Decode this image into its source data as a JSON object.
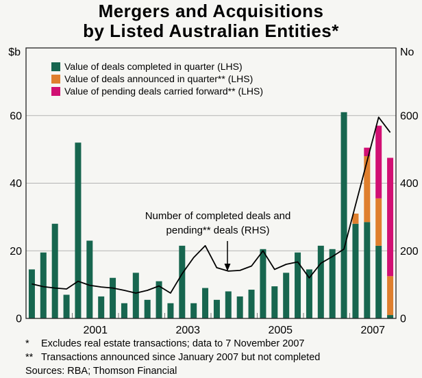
{
  "title": {
    "line1": "Mergers and Acquisitions",
    "line2": "by Listed Australian Entities*"
  },
  "colors": {
    "green": "#17664F",
    "orange": "#DF7F2E",
    "magenta": "#D11073",
    "line": "#000000",
    "grid": "#b3b3b3",
    "frame": "#222222",
    "background": "#f6f6f3"
  },
  "annotation": {
    "line1": "Number of completed deals and",
    "line2": "pending** deals (RHS)"
  },
  "footnotes": {
    "fn1_marker": "*",
    "fn1_text": "Excludes real estate transactions; data to 7 November 2007",
    "fn2_marker": "**",
    "fn2_text": "Transactions announced since January 2007 but not completed",
    "sources": "Sources: RBA; Thomson Financial"
  },
  "chart_data": {
    "type": "bar",
    "subtype": "stacked-bars-with-line",
    "quarters": [
      "2000Q1",
      "2000Q2",
      "2000Q3",
      "2000Q4",
      "2001Q1",
      "2001Q2",
      "2001Q3",
      "2001Q4",
      "2002Q1",
      "2002Q2",
      "2002Q3",
      "2002Q4",
      "2003Q1",
      "2003Q2",
      "2003Q3",
      "2003Q4",
      "2004Q1",
      "2004Q2",
      "2004Q3",
      "2004Q4",
      "2005Q1",
      "2005Q2",
      "2005Q3",
      "2005Q4",
      "2006Q1",
      "2006Q2",
      "2006Q3",
      "2006Q4",
      "2007Q1",
      "2007Q2",
      "2007Q3",
      "2007Q4"
    ],
    "x_tick_labels": [
      "2001",
      "2003",
      "2005",
      "2007"
    ],
    "lhs_axis": {
      "unit": "$b",
      "ticks": [
        0,
        20,
        40,
        60
      ],
      "min": 0,
      "max": 80
    },
    "rhs_axis": {
      "unit": "No",
      "ticks": [
        0,
        200,
        400,
        600
      ],
      "min": 0,
      "max": 800
    },
    "grid": "horizontal-only",
    "legend_position": "top-left-inside",
    "series": [
      {
        "name": "Value of deals completed in quarter (LHS)",
        "kind": "bar",
        "color_key": "green",
        "values": [
          14.5,
          19.5,
          28,
          7,
          52,
          23,
          6.5,
          12,
          4.5,
          13.5,
          5.5,
          11,
          4.5,
          21.5,
          4.5,
          9,
          5.5,
          8,
          6.5,
          8.5,
          20.5,
          9.5,
          13.5,
          19.5,
          14.5,
          21.5,
          20.5,
          61,
          28,
          28.5,
          21.5,
          1
        ]
      },
      {
        "name": "Value of deals announced in quarter** (LHS)",
        "kind": "bar",
        "color_key": "orange",
        "values": [
          0,
          0,
          0,
          0,
          0,
          0,
          0,
          0,
          0,
          0,
          0,
          0,
          0,
          0,
          0,
          0,
          0,
          0,
          0,
          0,
          0,
          0,
          0,
          0,
          0,
          0,
          0,
          0,
          3,
          19.5,
          14,
          11.5
        ]
      },
      {
        "name": "Value of pending deals carried forward** (LHS)",
        "kind": "bar",
        "color_key": "magenta",
        "values": [
          0,
          0,
          0,
          0,
          0,
          0,
          0,
          0,
          0,
          0,
          0,
          0,
          0,
          0,
          0,
          0,
          0,
          0,
          0,
          0,
          0,
          0,
          0,
          0,
          0,
          0,
          0,
          0,
          0,
          2.5,
          21.5,
          35
        ]
      },
      {
        "name": "Number of completed deals and pending** deals (RHS)",
        "kind": "line",
        "color_key": "line",
        "axis": "rhs",
        "values": [
          102,
          94,
          90,
          87,
          110,
          98,
          93,
          90,
          83,
          75,
          83,
          96,
          75,
          132,
          180,
          215,
          150,
          140,
          142,
          155,
          200,
          145,
          160,
          167,
          120,
          163,
          183,
          205,
          335,
          465,
          595,
          550
        ]
      }
    ]
  }
}
